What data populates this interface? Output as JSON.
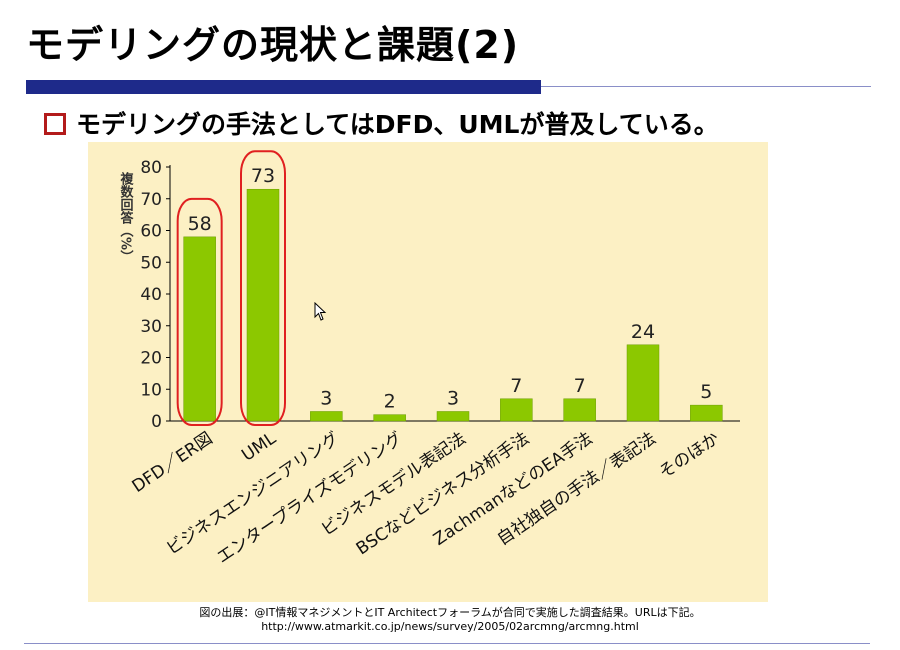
{
  "slide": {
    "title": "モデリングの現状と課題(2)",
    "bullet": "モデリングの手法としてはDFD、UMLが普及している。"
  },
  "chart_data": {
    "type": "bar",
    "ylabel": "複数回答（%）",
    "ylim": [
      0,
      80
    ],
    "yticks": [
      0,
      10,
      20,
      30,
      40,
      50,
      60,
      70,
      80
    ],
    "categories": [
      "DFD／ER図",
      "UML",
      "ビジネスエンジニアリング",
      "エンタープライズモデリング",
      "ビジネスモデル表記法",
      "BSCなどビジネス分析手法",
      "ZachmanなどのEA手法",
      "自社独自の手法／表記法",
      "そのほか"
    ],
    "values": [
      58,
      73,
      3,
      2,
      3,
      7,
      7,
      24,
      5
    ],
    "highlighted": [
      "DFD／ER図",
      "UML"
    ],
    "bar_color": "#8cc800",
    "highlight_color": "#e02020"
  },
  "source": {
    "line1": "図の出展：@IT情報マネジメントとIT Architectフォーラムが合同で実施した調査結果。URLは下記。",
    "line2": "http://www.atmarkit.co.jp/news/survey/2005/02arcmng/arcmng.html"
  }
}
